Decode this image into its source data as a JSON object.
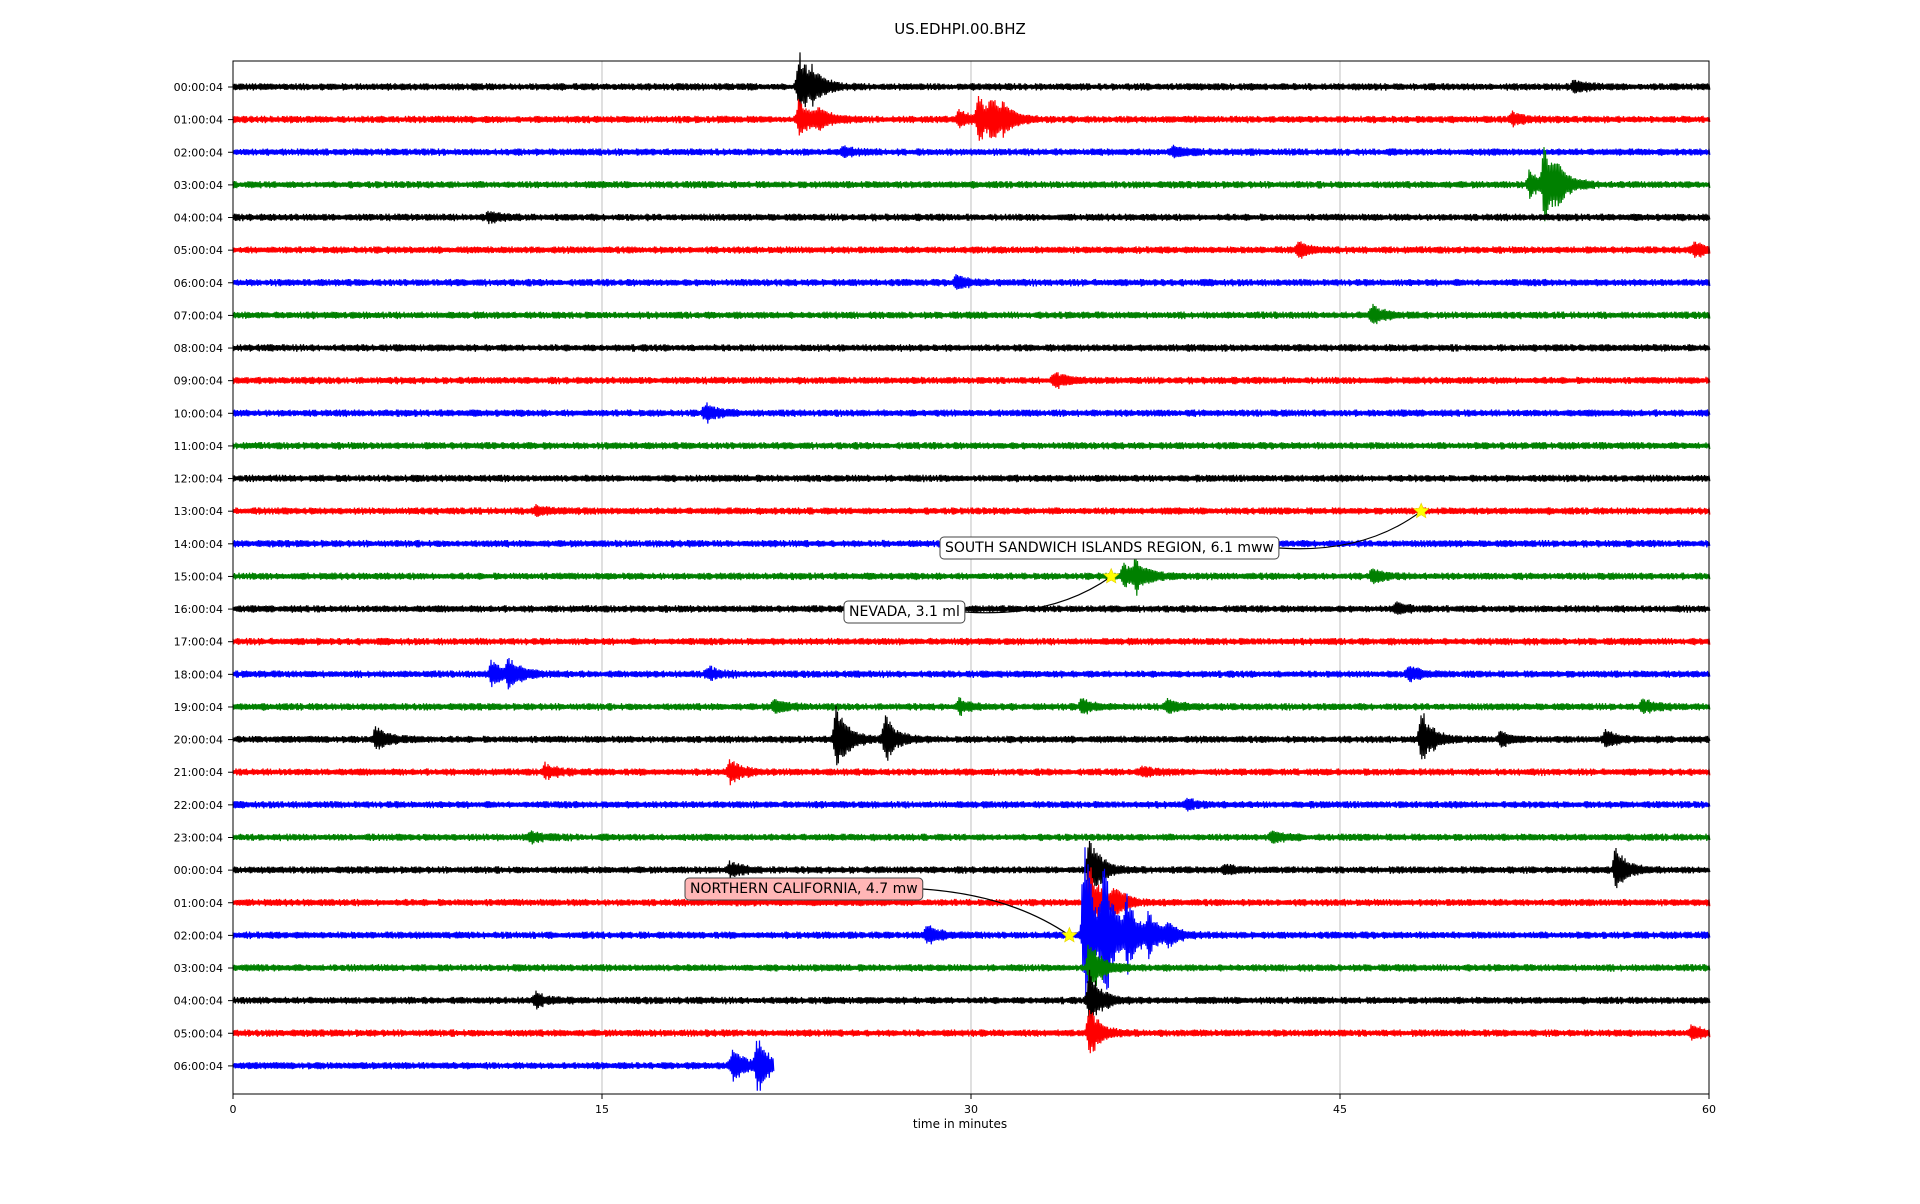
{
  "chart_data": {
    "type": "line",
    "title": "US.EDHPI.00.BHZ",
    "xlabel": "time in minutes",
    "ylabel": "",
    "xlim": [
      0,
      60
    ],
    "xticks": [
      0,
      15,
      30,
      45,
      60
    ],
    "grid": "vertical",
    "trace_colors": [
      "#000000",
      "#ff0000",
      "#0000ff",
      "#008000"
    ],
    "rows": [
      {
        "label": "00:00:04",
        "end": 60,
        "events": [
          {
            "t": 23.0,
            "amp": 1.6
          },
          {
            "t": 23.5,
            "amp": 0.5
          },
          {
            "t": 54.5,
            "amp": 0.3
          }
        ]
      },
      {
        "label": "01:00:04",
        "end": 60,
        "events": [
          {
            "t": 23.0,
            "amp": 0.9
          },
          {
            "t": 23.8,
            "amp": 0.4
          },
          {
            "t": 29.5,
            "amp": 0.4
          },
          {
            "t": 30.3,
            "amp": 1.0
          },
          {
            "t": 30.8,
            "amp": 0.8
          },
          {
            "t": 31.3,
            "amp": 0.4
          },
          {
            "t": 52.0,
            "amp": 0.3
          }
        ]
      },
      {
        "label": "02:00:04",
        "end": 60,
        "events": [
          {
            "t": 24.8,
            "amp": 0.2
          },
          {
            "t": 38.2,
            "amp": 0.2
          }
        ]
      },
      {
        "label": "03:00:04",
        "end": 60,
        "events": [
          {
            "t": 52.7,
            "amp": 0.6
          },
          {
            "t": 53.3,
            "amp": 1.5
          },
          {
            "t": 53.8,
            "amp": 0.6
          }
        ]
      },
      {
        "label": "04:00:04",
        "end": 60,
        "events": [
          {
            "t": 10.4,
            "amp": 0.2
          }
        ]
      },
      {
        "label": "05:00:04",
        "end": 60,
        "events": [
          {
            "t": 43.3,
            "amp": 0.3
          },
          {
            "t": 59.4,
            "amp": 0.3
          }
        ]
      },
      {
        "label": "06:00:04",
        "end": 60,
        "events": [
          {
            "t": 29.4,
            "amp": 0.3
          }
        ]
      },
      {
        "label": "07:00:04",
        "end": 60,
        "events": [
          {
            "t": 46.3,
            "amp": 0.4
          }
        ]
      },
      {
        "label": "08:00:04",
        "end": 60,
        "events": []
      },
      {
        "label": "09:00:04",
        "end": 60,
        "events": [
          {
            "t": 33.4,
            "amp": 0.3
          }
        ]
      },
      {
        "label": "10:00:04",
        "end": 60,
        "events": [
          {
            "t": 19.2,
            "amp": 0.4
          }
        ]
      },
      {
        "label": "11:00:04",
        "end": 60,
        "events": []
      },
      {
        "label": "12:00:04",
        "end": 60,
        "events": []
      },
      {
        "label": "13:00:04",
        "end": 60,
        "events": [
          {
            "t": 12.3,
            "amp": 0.2
          }
        ]
      },
      {
        "label": "14:00:04",
        "end": 60,
        "events": []
      },
      {
        "label": "15:00:04",
        "end": 60,
        "events": [
          {
            "t": 36.2,
            "amp": 0.5
          },
          {
            "t": 36.7,
            "amp": 0.6
          },
          {
            "t": 46.3,
            "amp": 0.3
          }
        ]
      },
      {
        "label": "16:00:04",
        "end": 60,
        "events": [
          {
            "t": 47.3,
            "amp": 0.2
          }
        ]
      },
      {
        "label": "17:00:04",
        "end": 60,
        "events": []
      },
      {
        "label": "18:00:04",
        "end": 60,
        "events": [
          {
            "t": 10.5,
            "amp": 0.7
          },
          {
            "t": 11.2,
            "amp": 0.6
          },
          {
            "t": 19.3,
            "amp": 0.3
          },
          {
            "t": 47.8,
            "amp": 0.3
          }
        ]
      },
      {
        "label": "19:00:04",
        "end": 60,
        "events": [
          {
            "t": 22.0,
            "amp": 0.3
          },
          {
            "t": 29.5,
            "amp": 0.3
          },
          {
            "t": 34.5,
            "amp": 0.3
          },
          {
            "t": 38.0,
            "amp": 0.3
          },
          {
            "t": 57.3,
            "amp": 0.3
          }
        ]
      },
      {
        "label": "20:00:04",
        "end": 60,
        "events": [
          {
            "t": 5.8,
            "amp": 0.5
          },
          {
            "t": 24.5,
            "amp": 1.5
          },
          {
            "t": 26.5,
            "amp": 1.0
          },
          {
            "t": 48.3,
            "amp": 1.3
          },
          {
            "t": 51.5,
            "amp": 0.3
          },
          {
            "t": 55.8,
            "amp": 0.4
          }
        ]
      },
      {
        "label": "21:00:04",
        "end": 60,
        "events": [
          {
            "t": 12.7,
            "amp": 0.3
          },
          {
            "t": 20.2,
            "amp": 0.5
          },
          {
            "t": 37.0,
            "amp": 0.2
          }
        ]
      },
      {
        "label": "22:00:04",
        "end": 60,
        "events": [
          {
            "t": 38.8,
            "amp": 0.2
          }
        ]
      },
      {
        "label": "23:00:04",
        "end": 60,
        "events": [
          {
            "t": 12.1,
            "amp": 0.2
          },
          {
            "t": 42.2,
            "amp": 0.2
          }
        ]
      },
      {
        "label": "00:00:04",
        "end": 60,
        "events": [
          {
            "t": 20.2,
            "amp": 0.3
          },
          {
            "t": 34.8,
            "amp": 1.4
          },
          {
            "t": 40.3,
            "amp": 0.2
          },
          {
            "t": 56.2,
            "amp": 0.9
          }
        ]
      },
      {
        "label": "01:00:04",
        "end": 60,
        "events": [
          {
            "t": 34.8,
            "amp": 1.6
          },
          {
            "t": 35.8,
            "amp": 0.6
          }
        ]
      },
      {
        "label": "02:00:04",
        "end": 60,
        "events": [
          {
            "t": 28.2,
            "amp": 0.4
          },
          {
            "t": 34.6,
            "amp": 4.4
          },
          {
            "t": 35.4,
            "amp": 2.4
          },
          {
            "t": 36.3,
            "amp": 1.4
          },
          {
            "t": 37.2,
            "amp": 0.8
          },
          {
            "t": 38.0,
            "amp": 0.4
          }
        ]
      },
      {
        "label": "03:00:04",
        "end": 60,
        "events": [
          {
            "t": 34.8,
            "amp": 1.2
          }
        ]
      },
      {
        "label": "04:00:04",
        "end": 60,
        "events": [
          {
            "t": 12.3,
            "amp": 0.3
          },
          {
            "t": 34.8,
            "amp": 1.4
          }
        ]
      },
      {
        "label": "05:00:04",
        "end": 60,
        "events": [
          {
            "t": 34.8,
            "amp": 1.0
          },
          {
            "t": 59.3,
            "amp": 0.3
          }
        ]
      },
      {
        "label": "06:00:04",
        "end": 22,
        "events": [
          {
            "t": 20.3,
            "amp": 0.8
          },
          {
            "t": 21.3,
            "amp": 1.1
          }
        ]
      }
    ],
    "annotations": [
      {
        "text": "SOUTH SANDWICH ISLANDS REGION, 6.1 mww",
        "row": 13,
        "t": 48.3,
        "star": "#ffff00",
        "box_color": "#ffffff"
      },
      {
        "text": "NEVADA, 3.1 ml",
        "row": 15,
        "t": 35.7,
        "star": "#ffff00",
        "box_color": "#ffffff"
      },
      {
        "text": "NORTHERN CALIFORNIA, 4.7 mw",
        "row": 26,
        "t": 34.0,
        "star": "#ffff00",
        "box_color": "#ffb6b6"
      }
    ]
  }
}
